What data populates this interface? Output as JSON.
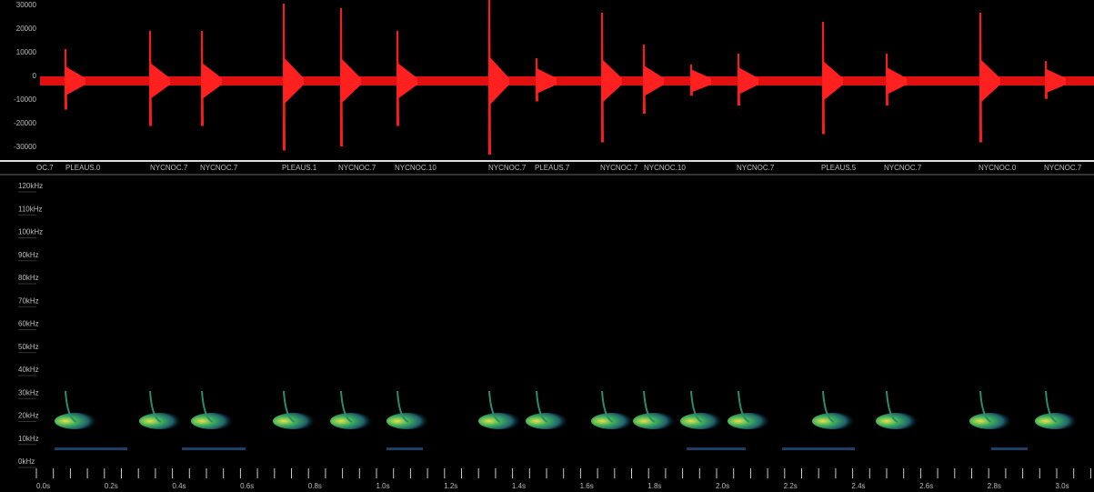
{
  "waveform": {
    "y_labels": [
      "30000",
      "20000",
      "10000",
      "0",
      "-10000",
      "-20000",
      "-30000"
    ]
  },
  "call_labels": [
    "OC.7",
    "PLEAUS.0",
    "NYCNOC.7",
    "NYCNOC.7",
    "PLEAUS.1",
    "NYCNOC.7",
    "NYCNOC.10",
    "NYCNOC.7",
    "PLEAUS.7",
    "NYCNOC.7",
    "NYCNOC.10",
    "NYCNOC.7",
    "PLEAUS.5",
    "NYCNOC.7",
    "NYCNOC.0",
    "NYCNOC.7"
  ],
  "spectrogram": {
    "y_labels": [
      "120kHz",
      "110kHz",
      "100kHz",
      "90kHz",
      "80kHz",
      "70kHz",
      "60kHz",
      "50kHz",
      "40kHz",
      "30kHz",
      "20kHz",
      "10kHz",
      "0kHz"
    ],
    "time_labels": [
      "0.0s",
      "0.2s",
      "0.4s",
      "0.6s",
      "0.8s",
      "1.0s",
      "1.2s",
      "1.4s",
      "1.6s",
      "1.8s",
      "2.0s",
      "2.2s",
      "2.4s",
      "2.6s",
      "2.8s",
      "3.0s"
    ]
  }
}
